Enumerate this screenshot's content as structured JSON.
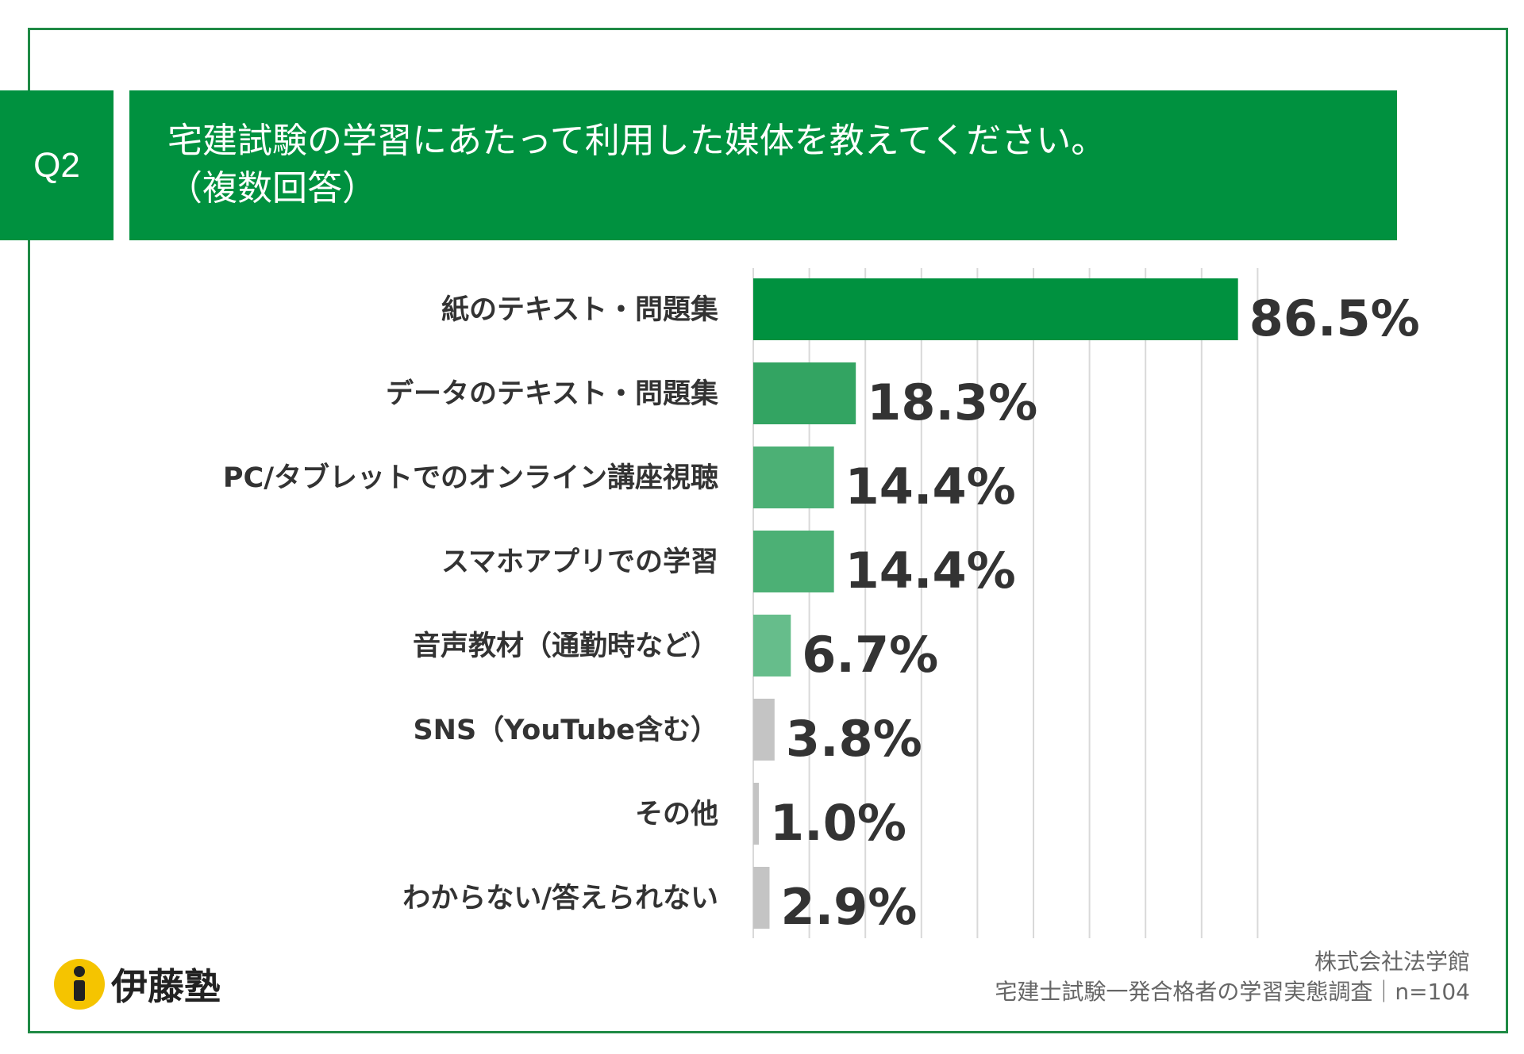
{
  "question": {
    "badge": "Q2",
    "title_line1": "宅建試験の学習にあたって利用した媒体を教えてください。",
    "title_line2": "（複数回答）"
  },
  "colors": {
    "header_green": "#00913f",
    "frame_green": "#1f8a45",
    "grid": "#d9d9d9",
    "text": "#333333",
    "source_text": "#666666"
  },
  "chart_data": {
    "type": "bar",
    "orientation": "horizontal",
    "categories": [
      "紙のテキスト・問題集",
      "データのテキスト・問題集",
      "PC/タブレットでのオンライン講座視聴",
      "スマホアプリでの学習",
      "音声教材（通勤時など）",
      "SNS（YouTube含む）",
      "その他",
      "わからない/答えられない"
    ],
    "values": [
      86.5,
      18.3,
      14.4,
      14.4,
      6.7,
      3.8,
      1.0,
      2.9
    ],
    "value_labels": [
      "86.5%",
      "18.3%",
      "14.4%",
      "14.4%",
      "6.7%",
      "3.8%",
      "1.0%",
      "2.9%"
    ],
    "bar_colors": [
      "#00913f",
      "#33a462",
      "#4cb075",
      "#4cb075",
      "#66bd8b",
      "#c4c4c4",
      "#c4c4c4",
      "#c4c4c4"
    ],
    "xlim": [
      0,
      100
    ],
    "grid": true,
    "unit": "%"
  },
  "logo": {
    "text": "伊藤塾",
    "mark_letter": "i",
    "mark_color": "#f5c400"
  },
  "source": {
    "line1": "株式会社法学館",
    "line2": "宅建士試験一発合格者の学習実態調査｜n=104"
  }
}
